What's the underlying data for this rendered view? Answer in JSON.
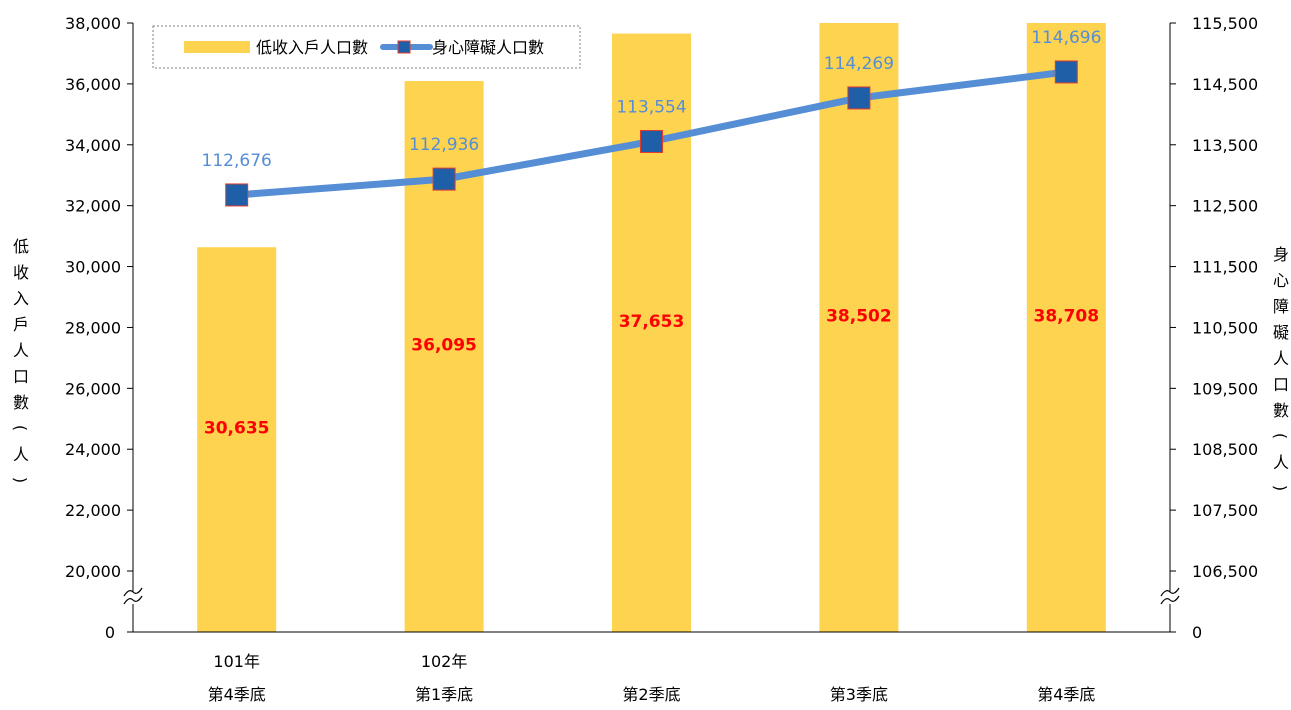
{
  "chart_data": {
    "type": "bar",
    "categories": [
      {
        "line1": "101年",
        "line2": "第4季底"
      },
      {
        "line1": "102年",
        "line2": "第1季底"
      },
      {
        "line1": "",
        "line2": "第2季底"
      },
      {
        "line1": "",
        "line2": "第3季底"
      },
      {
        "line1": "",
        "line2": "第4季底"
      }
    ],
    "series": [
      {
        "name": "低收入戶人口數",
        "type": "bar",
        "axis": "left",
        "color": "#FDD34F",
        "label_color": "#FF0000",
        "values": [
          30635,
          36095,
          37653,
          38502,
          38708
        ],
        "labels": [
          "30,635",
          "36,095",
          "37,653",
          "38,502",
          "38,708"
        ]
      },
      {
        "name": "身心障礙人口數",
        "type": "line",
        "axis": "right",
        "color": "#558ED5",
        "marker_color": "#1F5FA8",
        "marker_border": "#E23B2E",
        "label_color": "#558ED5",
        "values": [
          112676,
          112936,
          113554,
          114269,
          114696
        ],
        "labels": [
          "112,676",
          "112,936",
          "113,554",
          "114,269",
          "114,696"
        ]
      }
    ],
    "left_axis": {
      "label": "低收入戶人口數（人）",
      "ticks": [
        "20,000",
        "22,000",
        "24,000",
        "26,000",
        "28,000",
        "30,000",
        "32,000",
        "34,000",
        "36,000",
        "38,000"
      ],
      "min": 20000,
      "max": 38000,
      "broken": true,
      "zero_label": "0"
    },
    "right_axis": {
      "label": "身心障礙人口數（人）",
      "ticks": [
        "106,500",
        "107,500",
        "108,500",
        "109,500",
        "110,500",
        "111,500",
        "112,500",
        "113,500",
        "114,500",
        "115,500"
      ],
      "min": 106500,
      "max": 115500,
      "broken": true,
      "zero_label": "0"
    },
    "legend_position": "top-left",
    "grid": false
  }
}
